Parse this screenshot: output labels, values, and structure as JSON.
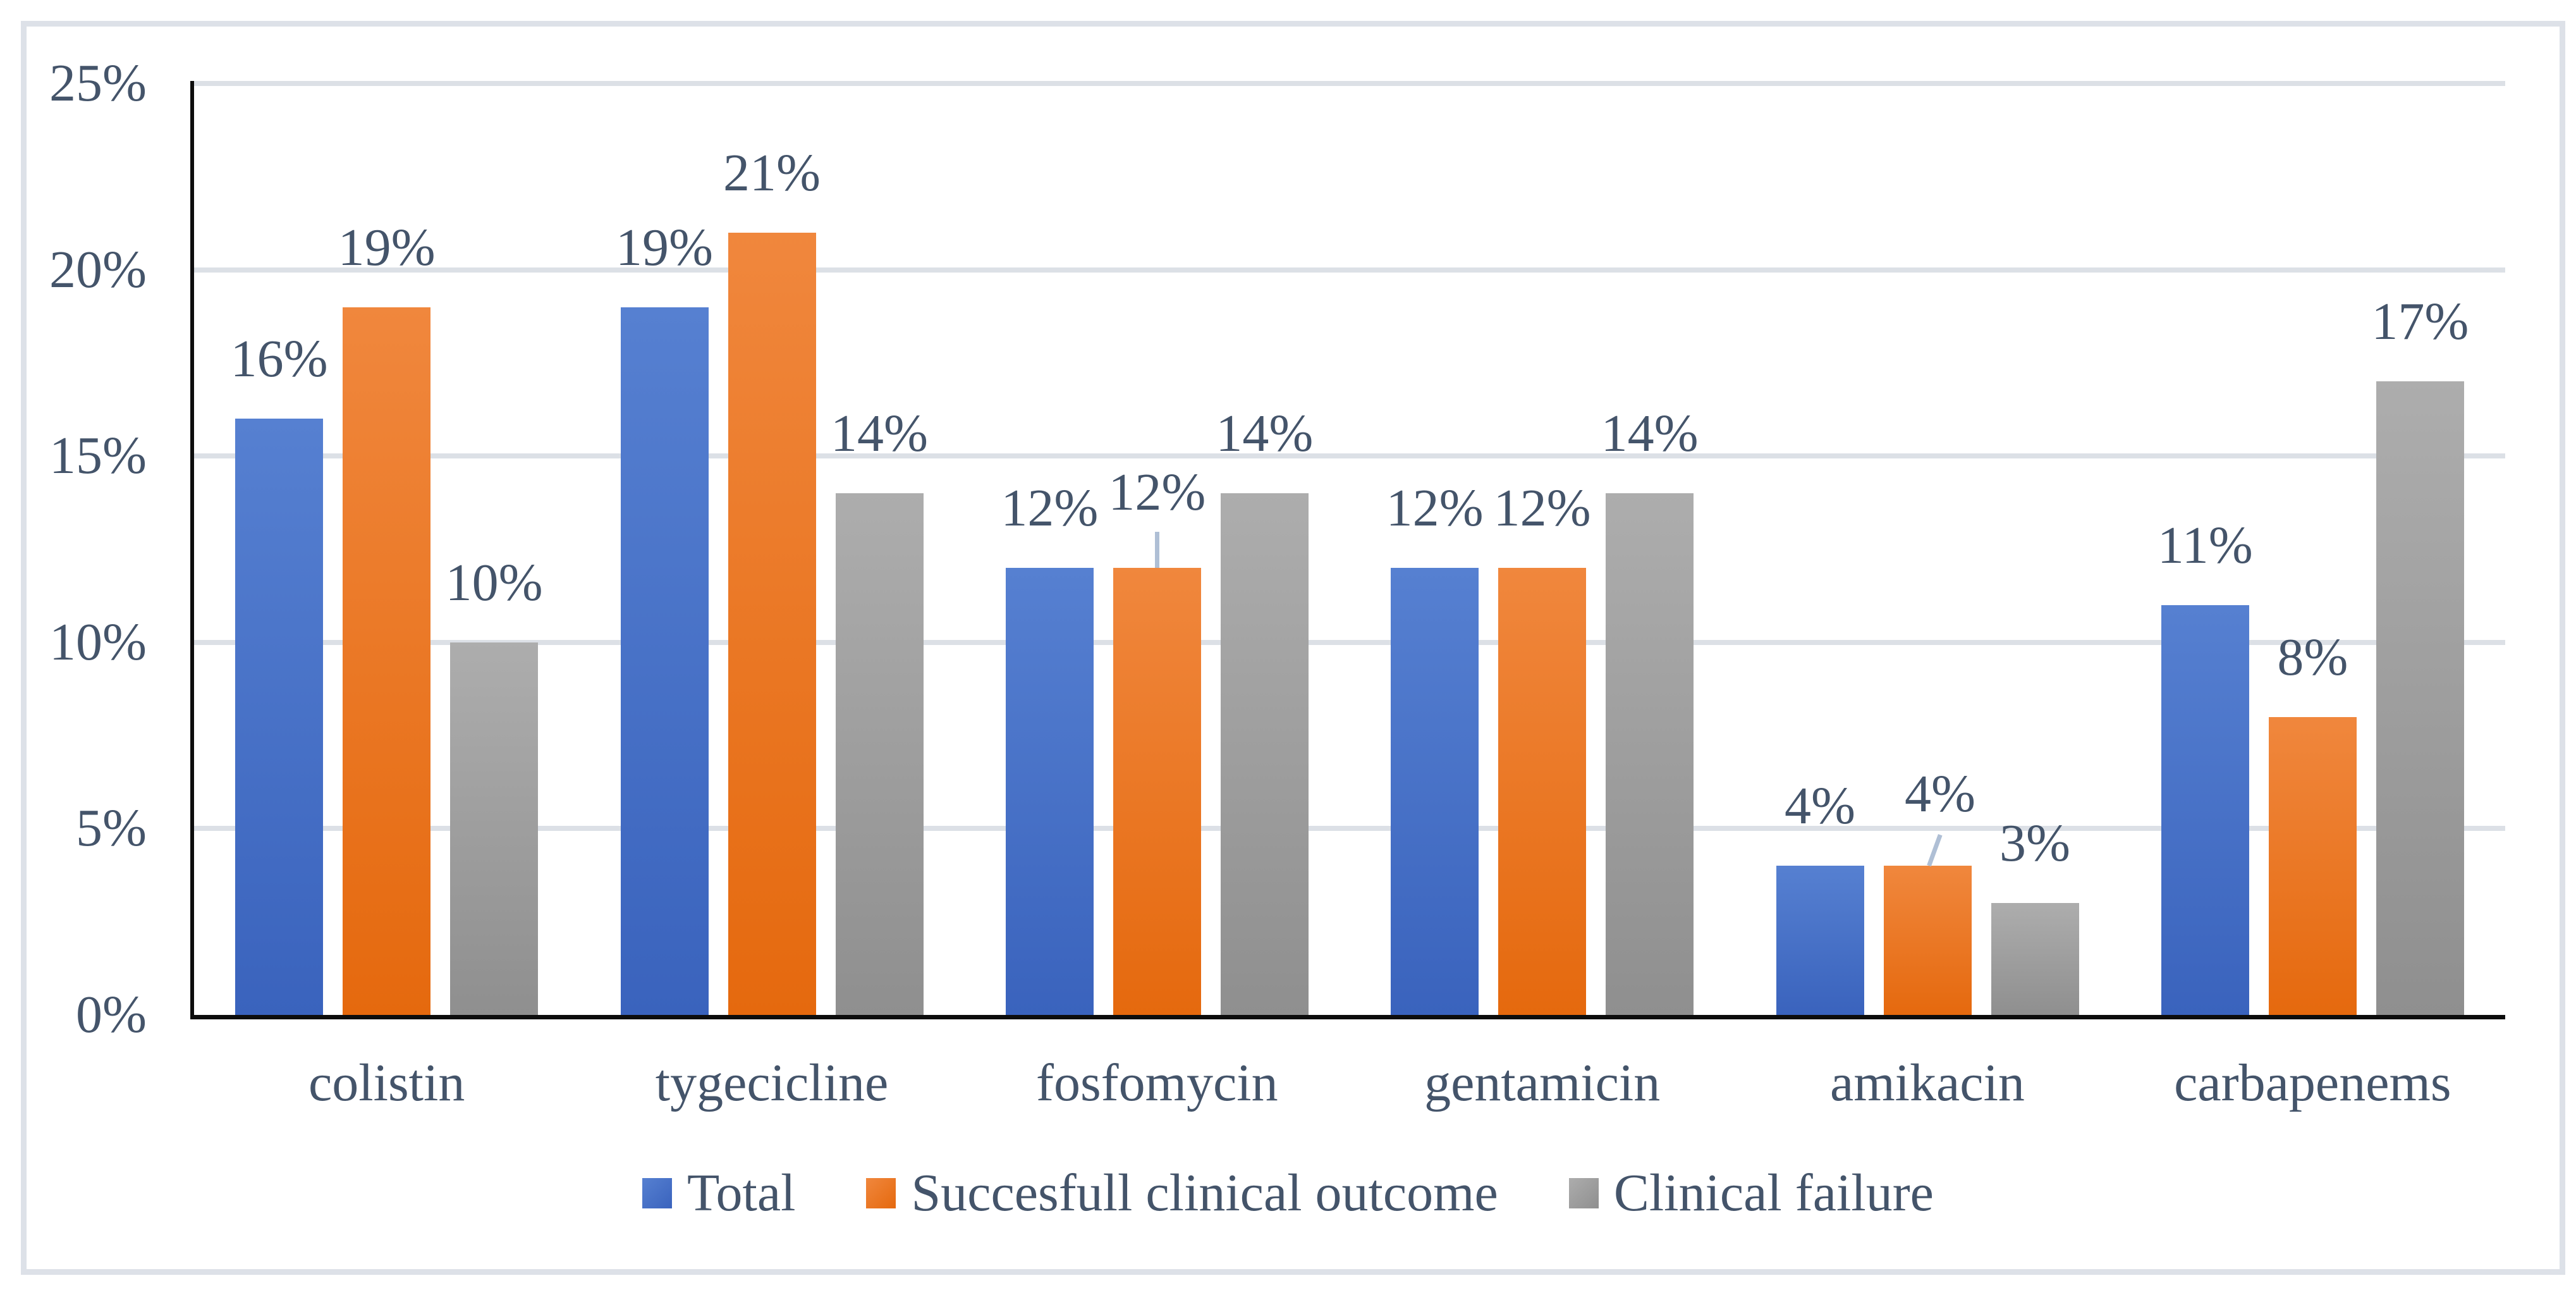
{
  "chart_data": {
    "type": "bar",
    "title": "",
    "xlabel": "",
    "ylabel": "",
    "categories": [
      "colistin",
      "tygecicline",
      "fosfomycin",
      "gentamicin",
      "amikacin",
      "carbapenems"
    ],
    "series": [
      {
        "name": "Total",
        "values": [
          16,
          19,
          12,
          12,
          4,
          11
        ],
        "labels": [
          "16%",
          "19%",
          "12%",
          "12%",
          "4%",
          "11%"
        ],
        "color_top": "#5680d1",
        "color_bottom": "#3a63bd"
      },
      {
        "name": "Succesfull clinical outcome",
        "values": [
          19,
          21,
          12,
          12,
          4,
          8
        ],
        "labels": [
          "19%",
          "21%",
          "12%",
          "12%",
          "4%",
          "8%"
        ],
        "color_top": "#f0873d",
        "color_bottom": "#e5690e"
      },
      {
        "name": "Clinical failure",
        "values": [
          10,
          14,
          14,
          14,
          3,
          17
        ],
        "labels": [
          "10%",
          "14%",
          "14%",
          "14%",
          "3%",
          "17%"
        ],
        "color_top": "#adadad",
        "color_bottom": "#8f8f8f"
      }
    ],
    "ylim": [
      0,
      25
    ],
    "yticks": [
      {
        "value": 0,
        "label": "0%"
      },
      {
        "value": 5,
        "label": "5%"
      },
      {
        "value": 10,
        "label": "10%"
      },
      {
        "value": 15,
        "label": "15%"
      },
      {
        "value": 20,
        "label": "20%"
      },
      {
        "value": 25,
        "label": "25%"
      }
    ],
    "grid": "horizontal",
    "legend_position": "bottom",
    "label_leaders": [
      {
        "category_index": 2,
        "series_index": 1,
        "type": "vertical"
      },
      {
        "category_index": 4,
        "series_index": 1,
        "type": "diagonal"
      }
    ],
    "colors": {
      "text": "#44546a",
      "gridline": "#dce0e6",
      "axis": "#0d0d0d",
      "leader": "#afbfd5",
      "frame_border": "#dde1e8",
      "background": "#ffffff"
    }
  }
}
